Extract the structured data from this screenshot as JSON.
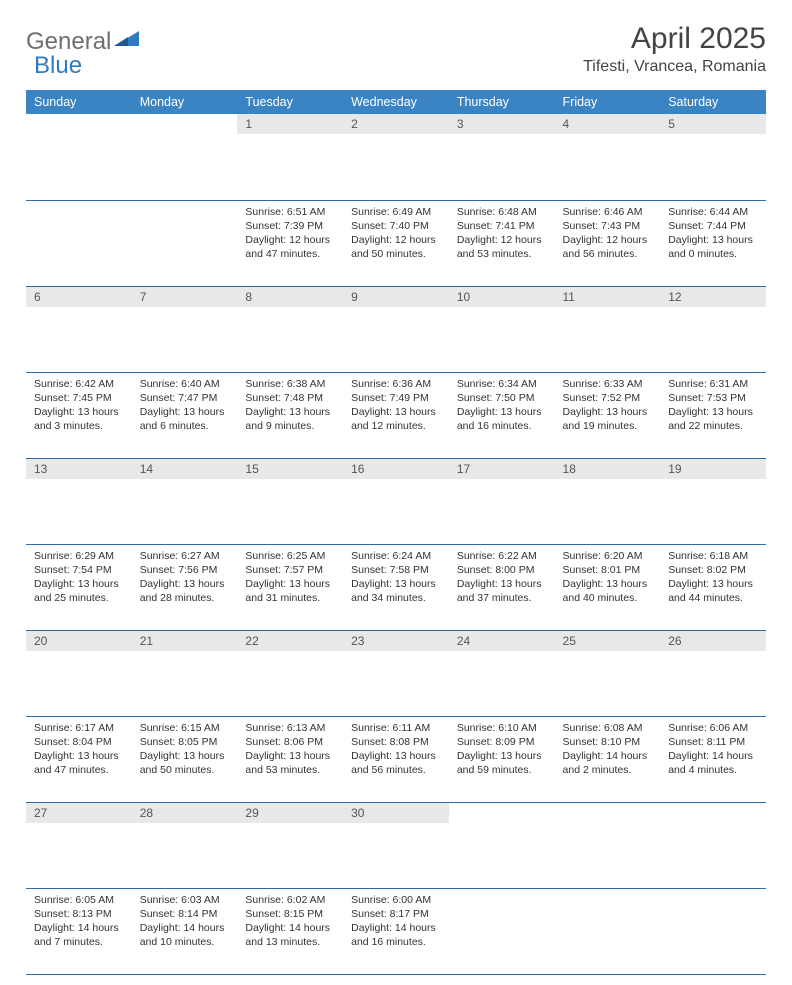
{
  "brand": {
    "word1": "General",
    "word2": "Blue"
  },
  "title": "April 2025",
  "location": "Tifesti, Vrancea, Romania",
  "colors": {
    "header_bg": "#3a84c4",
    "header_text": "#ffffff",
    "daynum_bg": "#e8e8e8",
    "row_border": "#2f6aa0",
    "logo_gray": "#6f6f6f",
    "logo_blue": "#2f7bbf"
  },
  "weekdays": [
    "Sunday",
    "Monday",
    "Tuesday",
    "Wednesday",
    "Thursday",
    "Friday",
    "Saturday"
  ],
  "grid": [
    [
      null,
      null,
      {
        "n": "1",
        "sr": "6:51 AM",
        "ss": "7:39 PM",
        "dl": "12 hours and 47 minutes."
      },
      {
        "n": "2",
        "sr": "6:49 AM",
        "ss": "7:40 PM",
        "dl": "12 hours and 50 minutes."
      },
      {
        "n": "3",
        "sr": "6:48 AM",
        "ss": "7:41 PM",
        "dl": "12 hours and 53 minutes."
      },
      {
        "n": "4",
        "sr": "6:46 AM",
        "ss": "7:43 PM",
        "dl": "12 hours and 56 minutes."
      },
      {
        "n": "5",
        "sr": "6:44 AM",
        "ss": "7:44 PM",
        "dl": "13 hours and 0 minutes."
      }
    ],
    [
      {
        "n": "6",
        "sr": "6:42 AM",
        "ss": "7:45 PM",
        "dl": "13 hours and 3 minutes."
      },
      {
        "n": "7",
        "sr": "6:40 AM",
        "ss": "7:47 PM",
        "dl": "13 hours and 6 minutes."
      },
      {
        "n": "8",
        "sr": "6:38 AM",
        "ss": "7:48 PM",
        "dl": "13 hours and 9 minutes."
      },
      {
        "n": "9",
        "sr": "6:36 AM",
        "ss": "7:49 PM",
        "dl": "13 hours and 12 minutes."
      },
      {
        "n": "10",
        "sr": "6:34 AM",
        "ss": "7:50 PM",
        "dl": "13 hours and 16 minutes."
      },
      {
        "n": "11",
        "sr": "6:33 AM",
        "ss": "7:52 PM",
        "dl": "13 hours and 19 minutes."
      },
      {
        "n": "12",
        "sr": "6:31 AM",
        "ss": "7:53 PM",
        "dl": "13 hours and 22 minutes."
      }
    ],
    [
      {
        "n": "13",
        "sr": "6:29 AM",
        "ss": "7:54 PM",
        "dl": "13 hours and 25 minutes."
      },
      {
        "n": "14",
        "sr": "6:27 AM",
        "ss": "7:56 PM",
        "dl": "13 hours and 28 minutes."
      },
      {
        "n": "15",
        "sr": "6:25 AM",
        "ss": "7:57 PM",
        "dl": "13 hours and 31 minutes."
      },
      {
        "n": "16",
        "sr": "6:24 AM",
        "ss": "7:58 PM",
        "dl": "13 hours and 34 minutes."
      },
      {
        "n": "17",
        "sr": "6:22 AM",
        "ss": "8:00 PM",
        "dl": "13 hours and 37 minutes."
      },
      {
        "n": "18",
        "sr": "6:20 AM",
        "ss": "8:01 PM",
        "dl": "13 hours and 40 minutes."
      },
      {
        "n": "19",
        "sr": "6:18 AM",
        "ss": "8:02 PM",
        "dl": "13 hours and 44 minutes."
      }
    ],
    [
      {
        "n": "20",
        "sr": "6:17 AM",
        "ss": "8:04 PM",
        "dl": "13 hours and 47 minutes."
      },
      {
        "n": "21",
        "sr": "6:15 AM",
        "ss": "8:05 PM",
        "dl": "13 hours and 50 minutes."
      },
      {
        "n": "22",
        "sr": "6:13 AM",
        "ss": "8:06 PM",
        "dl": "13 hours and 53 minutes."
      },
      {
        "n": "23",
        "sr": "6:11 AM",
        "ss": "8:08 PM",
        "dl": "13 hours and 56 minutes."
      },
      {
        "n": "24",
        "sr": "6:10 AM",
        "ss": "8:09 PM",
        "dl": "13 hours and 59 minutes."
      },
      {
        "n": "25",
        "sr": "6:08 AM",
        "ss": "8:10 PM",
        "dl": "14 hours and 2 minutes."
      },
      {
        "n": "26",
        "sr": "6:06 AM",
        "ss": "8:11 PM",
        "dl": "14 hours and 4 minutes."
      }
    ],
    [
      {
        "n": "27",
        "sr": "6:05 AM",
        "ss": "8:13 PM",
        "dl": "14 hours and 7 minutes."
      },
      {
        "n": "28",
        "sr": "6:03 AM",
        "ss": "8:14 PM",
        "dl": "14 hours and 10 minutes."
      },
      {
        "n": "29",
        "sr": "6:02 AM",
        "ss": "8:15 PM",
        "dl": "14 hours and 13 minutes."
      },
      {
        "n": "30",
        "sr": "6:00 AM",
        "ss": "8:17 PM",
        "dl": "14 hours and 16 minutes."
      },
      null,
      null,
      null
    ]
  ],
  "labels": {
    "sunrise": "Sunrise:",
    "sunset": "Sunset:",
    "daylight": "Daylight:"
  }
}
